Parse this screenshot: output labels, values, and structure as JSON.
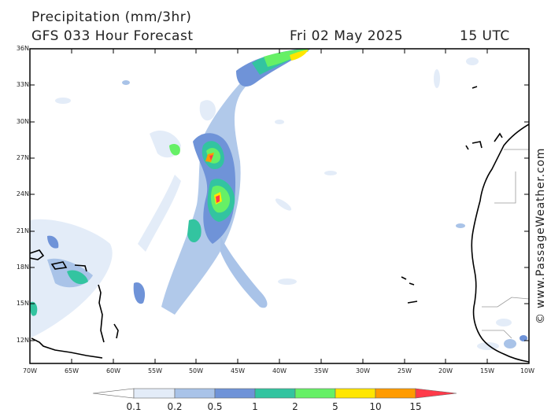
{
  "header": {
    "title": "Precipitation (mm/3hr)",
    "subtitle": "GFS 033 Hour Forecast",
    "date": "Fri 02 May 2025",
    "time": "15 UTC"
  },
  "credit": "© www.PassageWeather.com",
  "axes": {
    "lat_labels": [
      "36N",
      "33N",
      "30N",
      "27N",
      "24N",
      "21N",
      "18N",
      "15N",
      "12N"
    ],
    "lon_labels": [
      "70W",
      "65W",
      "60W",
      "55W",
      "50W",
      "45W",
      "40W",
      "35W",
      "30W",
      "25W",
      "20W",
      "15W",
      "10W"
    ]
  },
  "legend": {
    "values": [
      "0.1",
      "0.2",
      "0.5",
      "1",
      "2",
      "5",
      "10",
      "15"
    ],
    "colors": [
      "#ffffff",
      "#e3ecf8",
      "#a9c3e8",
      "#6f93d8",
      "#33c4a0",
      "#66f066",
      "#ffe600",
      "#ff9b00",
      "#ff3a4a"
    ]
  }
}
